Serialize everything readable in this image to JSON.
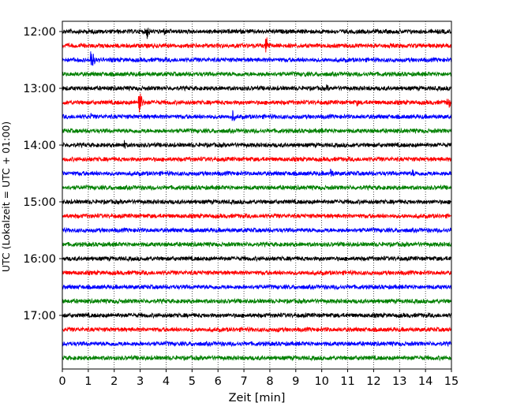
{
  "chart_data": {
    "type": "line",
    "title": "",
    "xlabel": "Zeit  [min]",
    "ylabel": "UTC (Lokalzeit = UTC + 01:00)",
    "xlim": [
      0,
      15
    ],
    "x_ticks": [
      "0",
      "1",
      "2",
      "3",
      "4",
      "5",
      "6",
      "7",
      "8",
      "9",
      "10",
      "11",
      "12",
      "13",
      "14",
      "15"
    ],
    "y_ticks": [
      "12:00",
      "13:00",
      "14:00",
      "15:00",
      "16:00",
      "17:00"
    ],
    "grid": "vertical dotted at each minute",
    "trace_interval_minutes": 15,
    "start_time": "12:00",
    "trace_colors": [
      "#000000",
      "#ff0000",
      "#0000ff",
      "#008000"
    ],
    "traces": [
      {
        "start": "12:00",
        "events": [
          {
            "t": 3.25,
            "amp": 12
          },
          {
            "t": 3.9,
            "amp": 7
          }
        ]
      },
      {
        "start": "12:15",
        "events": [
          {
            "t": 7.85,
            "amp": 16
          }
        ]
      },
      {
        "start": "12:30",
        "events": [
          {
            "t": 1.1,
            "amp": 20
          }
        ]
      },
      {
        "start": "12:45",
        "events": [
          {
            "t": 9.35,
            "amp": 5
          }
        ]
      },
      {
        "start": "13:00",
        "events": [
          {
            "t": 10.2,
            "amp": 6
          },
          {
            "t": 0.15,
            "amp": 4
          }
        ]
      },
      {
        "start": "13:15",
        "events": [
          {
            "t": 2.95,
            "amp": 22
          },
          {
            "t": 14.85,
            "amp": 12
          },
          {
            "t": 11.35,
            "amp": 5
          }
        ]
      },
      {
        "start": "13:30",
        "events": [
          {
            "t": 6.55,
            "amp": 10
          },
          {
            "t": 1.1,
            "amp": 5
          }
        ]
      },
      {
        "start": "13:45",
        "events": [
          {
            "t": 10.0,
            "amp": 4
          }
        ]
      },
      {
        "start": "14:00",
        "events": [
          {
            "t": 2.35,
            "amp": 9
          }
        ]
      },
      {
        "start": "14:15",
        "events": []
      },
      {
        "start": "14:30",
        "events": [
          {
            "t": 10.35,
            "amp": 9
          },
          {
            "t": 13.5,
            "amp": 6
          }
        ]
      },
      {
        "start": "14:45",
        "events": [
          {
            "t": 12.1,
            "amp": 4
          }
        ]
      },
      {
        "start": "15:00",
        "events": [
          {
            "t": 0.2,
            "amp": 4
          }
        ]
      },
      {
        "start": "15:15",
        "events": [
          {
            "t": 6.4,
            "amp": 3
          }
        ]
      },
      {
        "start": "15:30",
        "events": []
      },
      {
        "start": "15:45",
        "events": []
      },
      {
        "start": "16:00",
        "events": [
          {
            "t": 8.1,
            "amp": 3
          }
        ]
      },
      {
        "start": "16:15",
        "events": [
          {
            "t": 9.45,
            "amp": 5
          }
        ]
      },
      {
        "start": "16:30",
        "events": [
          {
            "t": 10.6,
            "amp": 4
          }
        ]
      },
      {
        "start": "16:45",
        "events": [
          {
            "t": 2.1,
            "amp": 5
          }
        ]
      },
      {
        "start": "17:00",
        "events": [
          {
            "t": 8.9,
            "amp": 3
          }
        ]
      },
      {
        "start": "17:15",
        "events": [
          {
            "t": 8.3,
            "amp": 5
          },
          {
            "t": 10.2,
            "amp": 4
          }
        ]
      },
      {
        "start": "17:30",
        "events": []
      },
      {
        "start": "17:45",
        "events": [
          {
            "t": 11.5,
            "amp": 4
          }
        ]
      }
    ]
  }
}
